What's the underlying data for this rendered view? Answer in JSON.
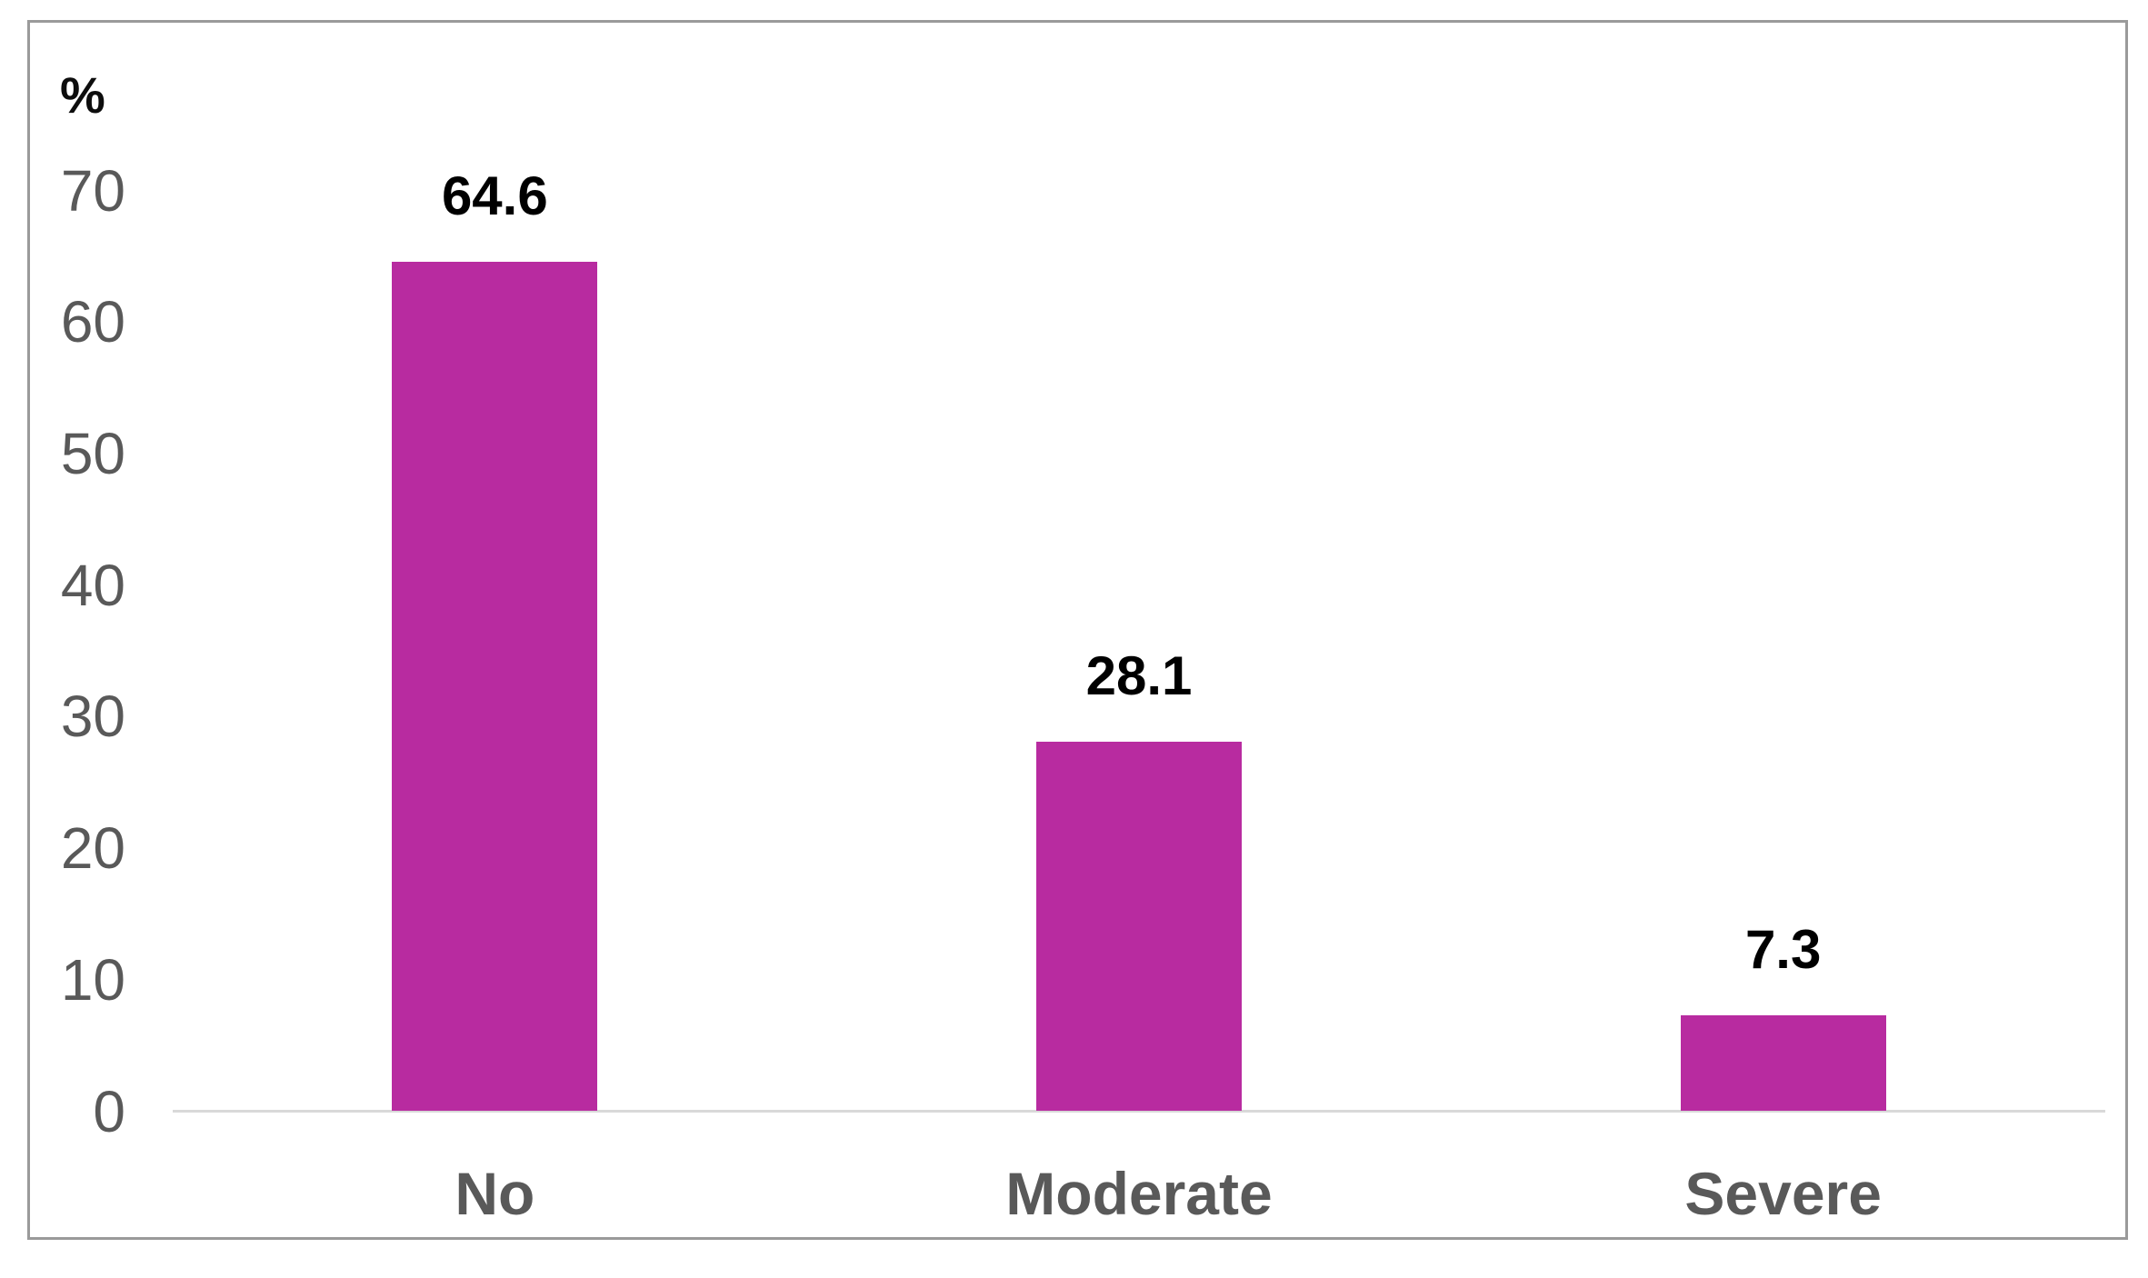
{
  "chart_data": {
    "type": "bar",
    "categories": [
      "No",
      "Moderate",
      "Severe"
    ],
    "values": [
      64.6,
      28.1,
      7.3
    ],
    "value_labels": [
      "64.6",
      "28.1",
      "7.3"
    ],
    "title": "",
    "xlabel": "",
    "ylabel": "%",
    "ylim": [
      0,
      70
    ],
    "yticks": [
      0,
      10,
      20,
      30,
      40,
      50,
      60,
      70
    ],
    "grid": false,
    "legend_position": "none",
    "bar_color": "#b82ba0"
  },
  "colors": {
    "bar": "#b82ba0",
    "tick_label": "#595959",
    "category_label": "#595959",
    "value_label": "#000000",
    "axis_line": "#d9d9d9",
    "frame_border": "#9a9a9a",
    "background": "#ffffff"
  }
}
